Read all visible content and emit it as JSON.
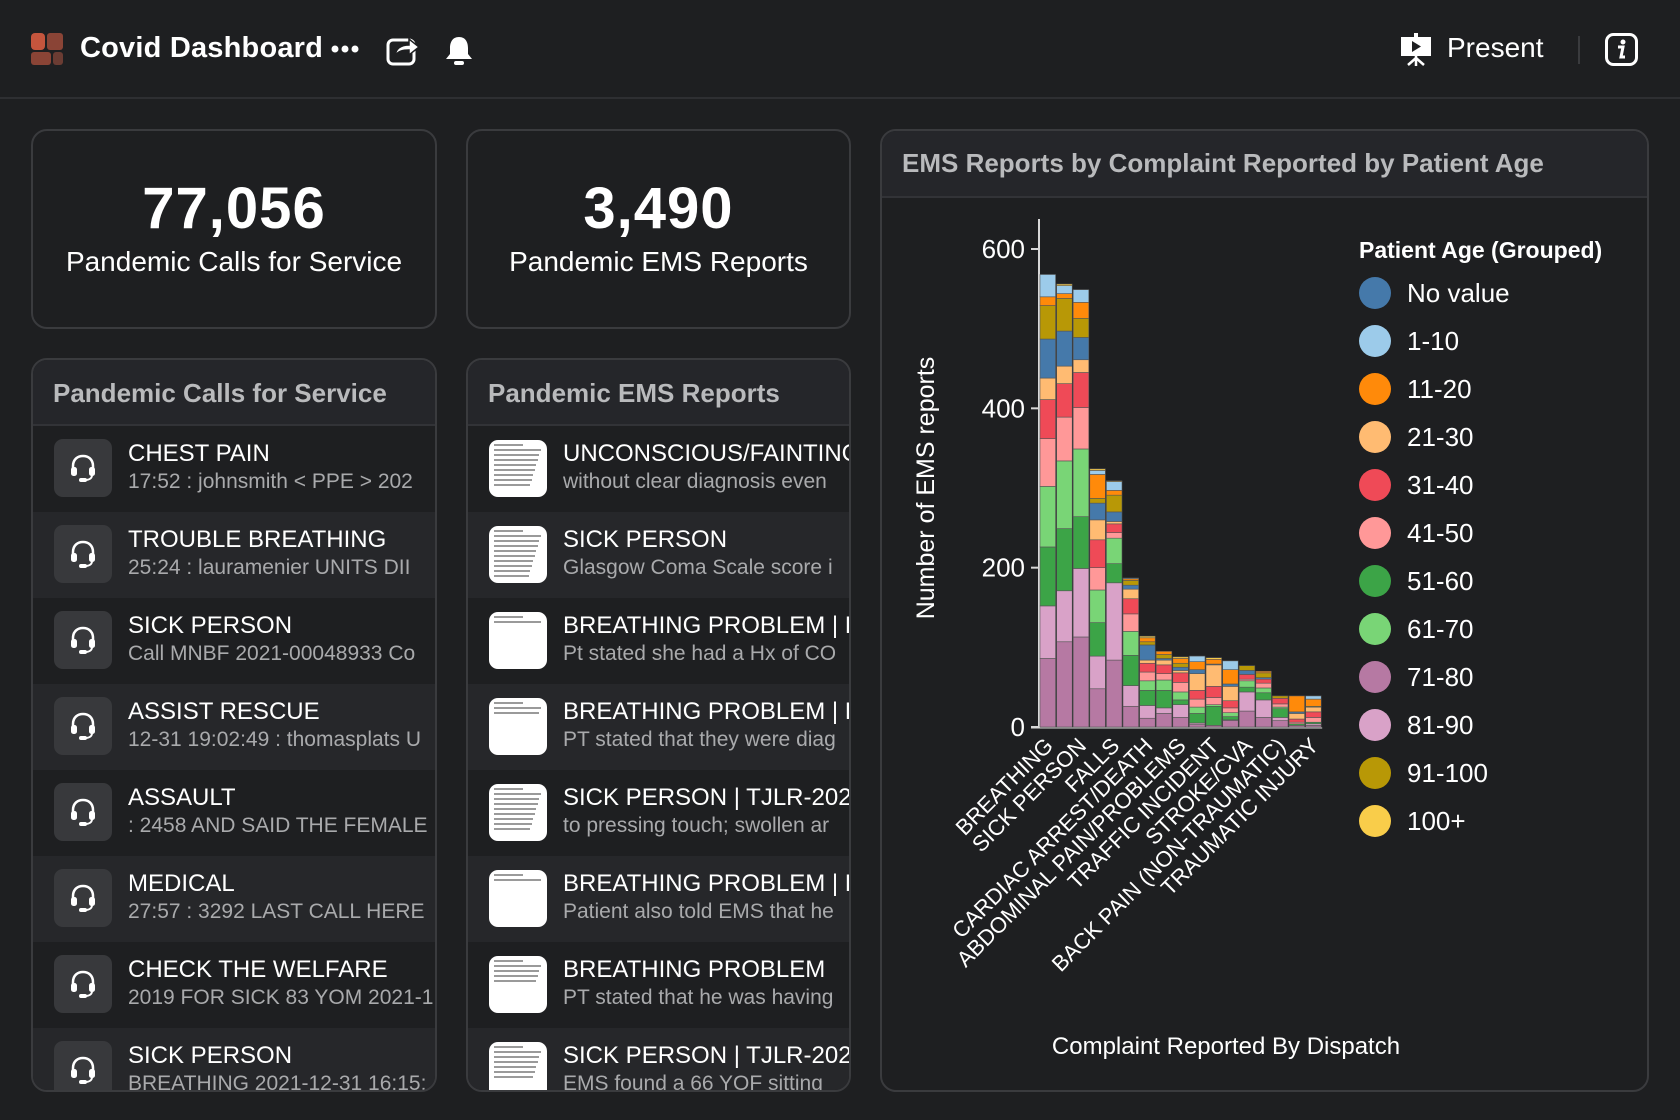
{
  "header": {
    "title": "Covid Dashboard",
    "present_label": "Present",
    "icons": [
      "logo-icon",
      "more-icon",
      "share-icon",
      "bell-icon",
      "present-icon",
      "info-icon"
    ]
  },
  "kpis": [
    {
      "value": "77,056",
      "label": "Pandemic Calls for Service"
    },
    {
      "value": "3,490",
      "label": "Pandemic EMS Reports"
    }
  ],
  "calls": {
    "title": "Pandemic Calls for Service",
    "items": [
      {
        "title": "CHEST PAIN",
        "subtitle": "17:52 : johnsmith  < PPE > 202"
      },
      {
        "title": "TROUBLE BREATHING",
        "subtitle": "25:24 : lauramenier  UNITS DII"
      },
      {
        "title": "SICK PERSON",
        "subtitle": "Call MNBF 2021-00048933 Co"
      },
      {
        "title": "ASSIST RESCUE",
        "subtitle": "12-31 19:02:49 : thomasplats U"
      },
      {
        "title": "ASSAULT",
        "subtitle": ": 2458 AND SAID THE FEMALE"
      },
      {
        "title": "MEDICAL",
        "subtitle": "27:57 : 3292 LAST CALL HERE"
      },
      {
        "title": "CHECK THE WELFARE",
        "subtitle": "2019 FOR SICK 83 YOM 2021-1"
      },
      {
        "title": "SICK PERSON",
        "subtitle": "BREATHING 2021-12-31 16:15:"
      }
    ]
  },
  "ems": {
    "title": "Pandemic EMS Reports",
    "items": [
      {
        "title": "UNCONSCIOUS/FAINTING",
        "subtitle": "without clear diagnosis even"
      },
      {
        "title": "SICK PERSON",
        "subtitle": "Glasgow Coma Scale score i"
      },
      {
        "title": "BREATHING PROBLEM | LO",
        "subtitle": "Pt stated she had a Hx of CO"
      },
      {
        "title": "BREATHING PROBLEM | LO",
        "subtitle": "PT stated that they were diag"
      },
      {
        "title": "SICK PERSON | TJLR-202",
        "subtitle": "to pressing touch; swollen ar"
      },
      {
        "title": "BREATHING PROBLEM | LO",
        "subtitle": "Patient also told EMS that he"
      },
      {
        "title": "BREATHING PROBLEM",
        "subtitle": "PT stated that he was having"
      },
      {
        "title": "SICK PERSON | TJLR-202",
        "subtitle": "EMS found a 66 YOF sitting"
      }
    ]
  },
  "chart_card": {
    "title": "EMS Reports by Complaint Reported by Patient Age"
  },
  "chart_data": {
    "type": "bar",
    "stacked": true,
    "xlabel": "Complaint Reported By Dispatch",
    "ylabel": "Number of EMS reports",
    "ylim": [
      0,
      600
    ],
    "yticks": [
      0,
      200,
      400,
      600
    ],
    "grid": false,
    "legend_title": "Patient Age (Grouped)",
    "legend_position": "right",
    "categories": [
      "BREATHING",
      "",
      "SICK PERSON",
      "",
      "FALLS",
      "",
      "CARDIAC ARREST/DEATH",
      "",
      "ABDOMINAL PAIN/PROBLEMS",
      "",
      "TRAFFIC INCIDENT",
      "",
      "STROKE/CVA",
      "",
      "BACK PAIN (NON-TRAUMATIC)",
      "",
      "TRAUMATIC INJURY"
    ],
    "series": [
      {
        "name": "No value",
        "color": "#4579aa",
        "values": [
          49,
          44,
          28,
          21,
          12,
          5,
          19,
          2,
          4,
          5,
          1,
          3,
          5,
          2,
          0,
          2,
          0
        ]
      },
      {
        "name": "1-10",
        "color": "#9ccbea",
        "values": [
          28,
          10,
          16,
          5,
          11,
          1,
          0,
          0,
          0,
          7,
          0,
          11,
          0,
          0,
          0,
          0,
          4
        ]
      },
      {
        "name": "11-20",
        "color": "#ff8a0a",
        "values": [
          11,
          6,
          20,
          30,
          6,
          2,
          5,
          4,
          6,
          10,
          6,
          18,
          0,
          2,
          0,
          20,
          9
        ]
      },
      {
        "name": "21-30",
        "color": "#ffbb72",
        "values": [
          27,
          22,
          16,
          25,
          3,
          12,
          4,
          6,
          3,
          21,
          27,
          18,
          0,
          0,
          0,
          7,
          6
        ]
      },
      {
        "name": "31-40",
        "color": "#ef4a57",
        "values": [
          49,
          42,
          44,
          35,
          11,
          19,
          11,
          11,
          12,
          11,
          14,
          9,
          6,
          5,
          7,
          4,
          7
        ]
      },
      {
        "name": "41-50",
        "color": "#ff9898",
        "values": [
          60,
          55,
          52,
          28,
          7,
          22,
          11,
          8,
          12,
          10,
          9,
          6,
          2,
          6,
          4,
          2,
          6
        ]
      },
      {
        "name": "51-60",
        "color": "#3ca447",
        "values": [
          74,
          78,
          65,
          42,
          24,
          38,
          19,
          22,
          6,
          12,
          24,
          4,
          6,
          9,
          11,
          2,
          2
        ]
      },
      {
        "name": "61-70",
        "color": "#79d576",
        "values": [
          76,
          85,
          85,
          41,
          32,
          30,
          12,
          13,
          10,
          8,
          2,
          5,
          8,
          6,
          2,
          0,
          0
        ]
      },
      {
        "name": "71-80",
        "color": "#b679a3",
        "values": [
          86,
          107,
          113,
          48,
          84,
          26,
          11,
          17,
          12,
          3,
          2,
          8,
          20,
          12,
          8,
          2,
          2
        ]
      },
      {
        "name": "81-90",
        "color": "#d9a2c8",
        "values": [
          66,
          64,
          86,
          41,
          97,
          26,
          16,
          7,
          16,
          2,
          0,
          1,
          24,
          22,
          4,
          0,
          2
        ]
      },
      {
        "name": "91-100",
        "color": "#b89806",
        "values": [
          42,
          41,
          24,
          6,
          21,
          6,
          4,
          5,
          5,
          0,
          0,
          0,
          6,
          6,
          3,
          0,
          1
        ]
      },
      {
        "name": "100+",
        "color": "#f9cd4a",
        "values": [
          0,
          2,
          0,
          2,
          1,
          0,
          2,
          0,
          2,
          0,
          2,
          0,
          0,
          0,
          0,
          0,
          0
        ]
      }
    ]
  }
}
